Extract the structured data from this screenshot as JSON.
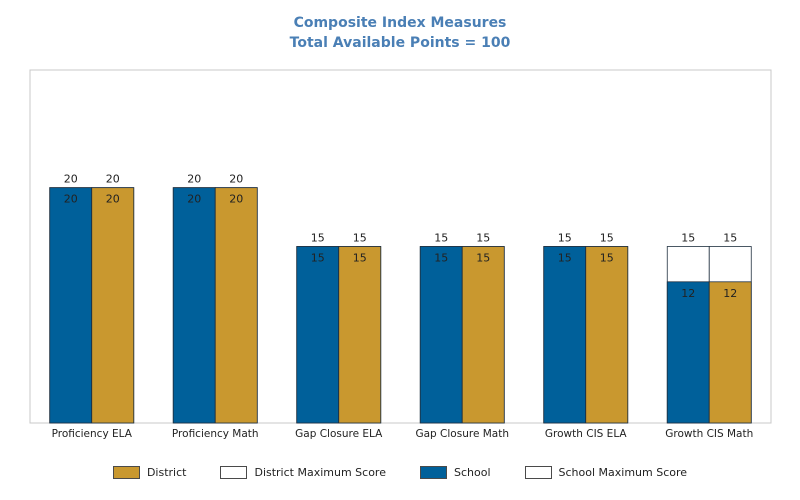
{
  "chart_data": {
    "type": "bar",
    "title": "Composite Index Measures",
    "subtitle": "Total Available Points = 100",
    "categories": [
      "Proficiency ELA",
      "Proficiency Math",
      "Gap Closure ELA",
      "Gap Closure Math",
      "Growth CIS ELA",
      "Growth CIS Math"
    ],
    "series": [
      {
        "name": "School",
        "values": [
          20,
          20,
          15,
          15,
          15,
          12
        ],
        "color": "#00609a"
      },
      {
        "name": "District",
        "values": [
          20,
          20,
          15,
          15,
          15,
          12
        ],
        "color": "#c9982f"
      }
    ],
    "max_series": [
      {
        "name": "School Maximum Score",
        "values": [
          20,
          20,
          15,
          15,
          15,
          15
        ],
        "color": "#ffffff"
      },
      {
        "name": "District Maximum Score",
        "values": [
          20,
          20,
          15,
          15,
          15,
          15
        ],
        "color": "#ffffff"
      }
    ],
    "ylim": [
      0,
      30
    ],
    "grid": false,
    "legend": {
      "position": "bottom",
      "items": [
        {
          "label": "District",
          "color": "#c9982f"
        },
        {
          "label": "District Maximum Score",
          "color": "#ffffff"
        },
        {
          "label": "School",
          "color": "#00609a"
        },
        {
          "label": "School Maximum Score",
          "color": "#ffffff"
        }
      ]
    }
  }
}
